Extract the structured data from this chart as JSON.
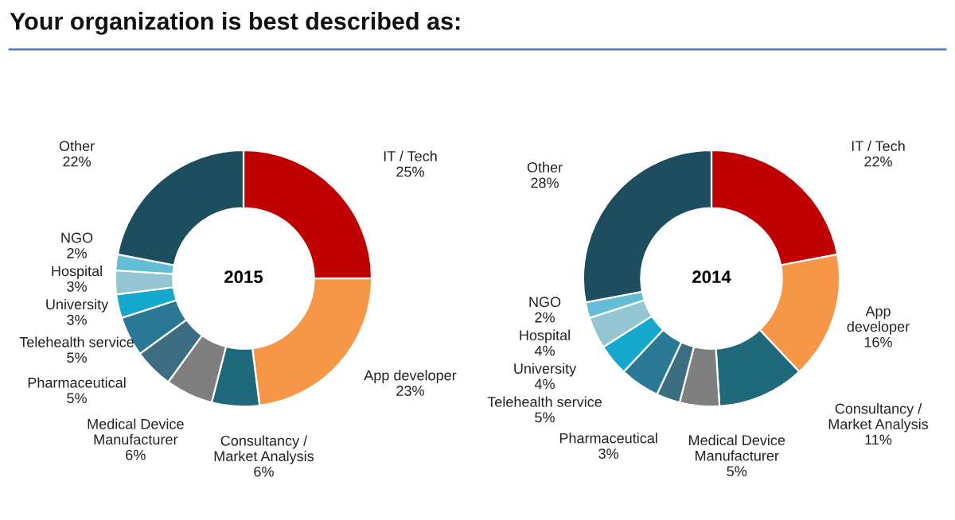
{
  "chart_data": [
    {
      "type": "donut",
      "title": "Your organization is best described as:",
      "annotations": [
        "2015"
      ],
      "categories": [
        "IT / Tech",
        "App developer",
        "Consultancy /\nMarket Analysis",
        "Medical Device\nManufacturer",
        "Pharmaceutical",
        "Telehealth service",
        "University",
        "Hospital",
        "NGO",
        "Other"
      ],
      "values": [
        25,
        23,
        6,
        6,
        5,
        5,
        3,
        3,
        2,
        22
      ],
      "value_labels": [
        "25%",
        "23%",
        "6%",
        "6%",
        "5%",
        "5%",
        "3%",
        "3%",
        "2%",
        "22%"
      ],
      "colors": [
        "#c00000",
        "#f79646",
        "#1f6a7a",
        "#7f7f7f",
        "#3a6e80",
        "#2a7896",
        "#14a9cc",
        "#93c5d2",
        "#65bcd6",
        "#1d4e5f"
      ]
    },
    {
      "type": "donut",
      "annotations": [
        "2014"
      ],
      "categories": [
        "IT / Tech",
        "App\ndeveloper",
        "Consultancy /\nMarket Analysis",
        "Medical Device\nManufacturer",
        "Pharmaceutical",
        "Telehealth service",
        "University",
        "Hospital",
        "NGO",
        "Other"
      ],
      "values": [
        22,
        16,
        11,
        5,
        3,
        5,
        4,
        4,
        2,
        28
      ],
      "value_labels": [
        "22%",
        "16%",
        "11%",
        "5%",
        "3%",
        "5%",
        "4%",
        "4%",
        "2%",
        "28%"
      ],
      "colors": [
        "#c00000",
        "#f79646",
        "#1f6a7a",
        "#7f7f7f",
        "#3a6e80",
        "#2a7896",
        "#14a9cc",
        "#93c5d2",
        "#65bcd6",
        "#1d4e5f"
      ]
    }
  ]
}
